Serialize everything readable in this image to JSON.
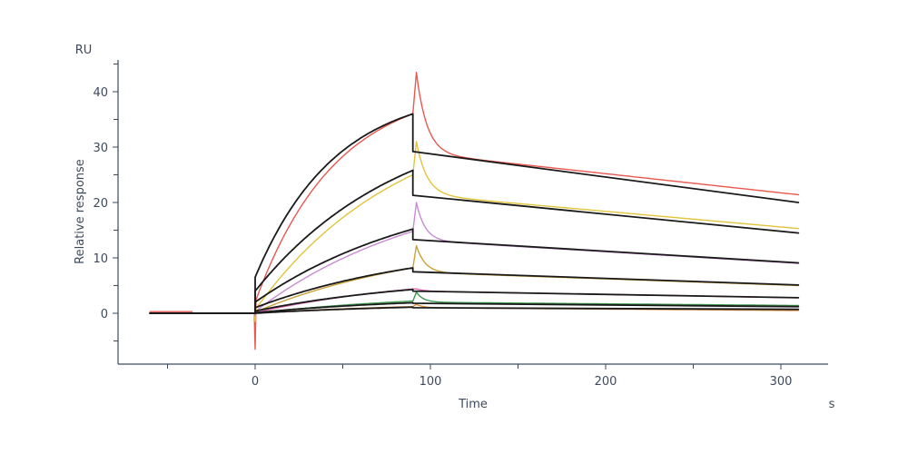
{
  "chart_data": {
    "type": "line",
    "title": "",
    "xlabel": "Time",
    "x_unit": "s",
    "ylabel": "Relative response",
    "y_unit": "RU",
    "xlim": [
      -60,
      315
    ],
    "ylim": [
      -9,
      46
    ],
    "x_ticks": [
      0,
      100,
      200,
      300
    ],
    "y_ticks": [
      0,
      10,
      20,
      30,
      40
    ],
    "x_minor_step": 50,
    "y_minor_step": 5,
    "grid": false,
    "legend": "none",
    "phases": {
      "association_start": 0,
      "association_end": 90,
      "dissociation_end": 310
    },
    "baseline_artifact": {
      "color": "#e85850",
      "x": [
        -60,
        -36
      ],
      "y": 0.3
    },
    "series": [
      {
        "color": "#e85850",
        "spike_start": -6.5,
        "jump": 2.0,
        "end_assoc": 36.0,
        "k_obs": 0.022,
        "spike_end": 43.5,
        "after_drop": 29.0,
        "end_dissoc": 21.4,
        "tau_fast": 6
      },
      {
        "color": "#e2c43a",
        "spike_start": -1.5,
        "jump": 0.6,
        "end_assoc": 25.0,
        "k_obs": 0.012,
        "spike_end": 31.0,
        "after_drop": 21.5,
        "end_dissoc": 15.3,
        "tau_fast": 6
      },
      {
        "color": "#c98ad3",
        "spike_start": -0.5,
        "jump": 0.3,
        "end_assoc": 14.8,
        "k_obs": 0.01,
        "spike_end": 20.0,
        "after_drop": 13.2,
        "end_dissoc": 9.0,
        "tau_fast": 5
      },
      {
        "color": "#c9a23a",
        "spike_start": -0.3,
        "jump": 0.2,
        "end_assoc": 8.2,
        "k_obs": 0.01,
        "spike_end": 12.2,
        "after_drop": 7.4,
        "end_dissoc": 5.0,
        "tau_fast": 5
      },
      {
        "color": "#e066b0",
        "spike_start": -0.2,
        "jump": 0.1,
        "end_assoc": 4.4,
        "k_obs": 0.01,
        "spike_end": 4.4,
        "after_drop": 4.0,
        "end_dissoc": 2.8,
        "tau_fast": 5
      },
      {
        "color": "#3c9a4e",
        "spike_start": -0.1,
        "jump": 0.0,
        "end_assoc": 2.2,
        "k_obs": 0.01,
        "spike_end": 3.8,
        "after_drop": 2.0,
        "end_dissoc": 1.4,
        "tau_fast": 4
      },
      {
        "color": "#d98a3a",
        "spike_start": -0.1,
        "jump": 0.0,
        "end_assoc": 1.2,
        "k_obs": 0.01,
        "spike_end": 1.6,
        "after_drop": 1.0,
        "end_dissoc": 0.5,
        "tau_fast": 4
      }
    ],
    "fits": [
      {
        "color": "#1a1a1a",
        "jump": 6.5,
        "end_assoc": 36.0,
        "k_obs": 0.022,
        "after_drop": 29.2,
        "end_dissoc": 20.0
      },
      {
        "color": "#1a1a1a",
        "jump": 4.0,
        "end_assoc": 25.8,
        "k_obs": 0.012,
        "after_drop": 21.3,
        "end_dissoc": 14.5
      },
      {
        "color": "#1a1a1a",
        "jump": 2.0,
        "end_assoc": 15.2,
        "k_obs": 0.01,
        "after_drop": 13.3,
        "end_dissoc": 9.1
      },
      {
        "color": "#1a1a1a",
        "jump": 1.0,
        "end_assoc": 8.2,
        "k_obs": 0.01,
        "after_drop": 7.5,
        "end_dissoc": 5.1
      },
      {
        "color": "#1a1a1a",
        "jump": 0.4,
        "end_assoc": 4.3,
        "k_obs": 0.01,
        "after_drop": 4.0,
        "end_dissoc": 2.8
      },
      {
        "color": "#1a1a1a",
        "jump": 0.1,
        "end_assoc": 1.9,
        "k_obs": 0.01,
        "after_drop": 1.8,
        "end_dissoc": 1.2
      },
      {
        "color": "#1a1a1a",
        "jump": 0.0,
        "end_assoc": 1.1,
        "k_obs": 0.01,
        "after_drop": 1.0,
        "end_dissoc": 0.7
      }
    ]
  }
}
